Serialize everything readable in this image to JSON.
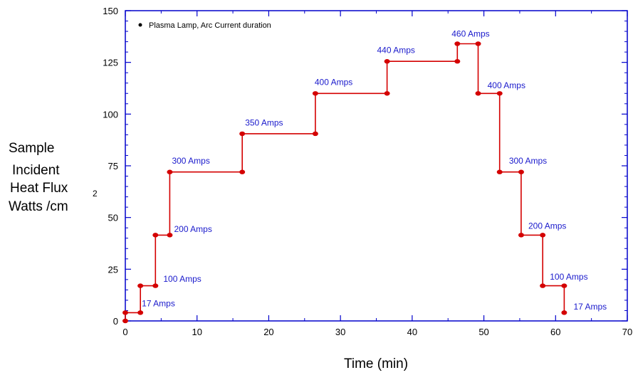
{
  "chart_data": {
    "type": "line",
    "step": true,
    "xlim": [
      0,
      70
    ],
    "ylim": [
      0,
      150
    ],
    "x_ticks": [
      0,
      10,
      20,
      30,
      40,
      50,
      60,
      70
    ],
    "y_ticks": [
      0,
      25,
      50,
      75,
      100,
      125,
      150
    ],
    "xlabel": "Time (min)",
    "ylabel_lines": [
      "Sample",
      "Incident",
      "Heat Flux",
      "Watts /cm"
    ],
    "ylabel_superscript": "2",
    "legend": {
      "label": "Plasma Lamp, Arc Current duration",
      "position": "top-left"
    },
    "colors": {
      "series": "#d40000",
      "labels": "#1a1acc",
      "axis": "#0000cc"
    },
    "series": [
      {
        "points": [
          [
            0,
            0
          ],
          [
            0,
            4
          ],
          [
            2.1,
            4
          ],
          [
            2.1,
            17
          ],
          [
            4.2,
            17
          ],
          [
            4.2,
            41.5
          ],
          [
            6.2,
            41.5
          ],
          [
            6.2,
            72
          ],
          [
            16.3,
            72
          ],
          [
            16.3,
            90.5
          ],
          [
            26.5,
            90.5
          ],
          [
            26.5,
            110
          ],
          [
            36.5,
            110
          ],
          [
            36.5,
            125.5
          ],
          [
            46.3,
            125.5
          ],
          [
            46.3,
            134
          ],
          [
            49.2,
            134
          ],
          [
            49.2,
            110
          ],
          [
            52.2,
            110
          ],
          [
            52.2,
            72
          ],
          [
            55.2,
            72
          ],
          [
            55.2,
            41.5
          ],
          [
            58.2,
            41.5
          ],
          [
            58.2,
            17
          ],
          [
            61.2,
            17
          ],
          [
            61.2,
            4
          ]
        ]
      }
    ],
    "annotations": [
      {
        "text": "17 Amps",
        "x": 2.3,
        "y": 7
      },
      {
        "text": "100 Amps",
        "x": 5.3,
        "y": 19
      },
      {
        "text": "200 Amps",
        "x": 6.8,
        "y": 43
      },
      {
        "text": "300 Amps",
        "x": 6.5,
        "y": 76
      },
      {
        "text": "350 Amps",
        "x": 16.7,
        "y": 94.5
      },
      {
        "text": "400 Amps",
        "x": 26.4,
        "y": 114
      },
      {
        "text": "440 Amps",
        "x": 35.1,
        "y": 129.5
      },
      {
        "text": "460 Amps",
        "x": 45.5,
        "y": 137.5
      },
      {
        "text": "400 Amps",
        "x": 50.5,
        "y": 112.5
      },
      {
        "text": "300 Amps",
        "x": 53.5,
        "y": 76
      },
      {
        "text": "200 Amps",
        "x": 56.2,
        "y": 44.5
      },
      {
        "text": "100 Amps",
        "x": 59.2,
        "y": 20
      },
      {
        "text": "17 Amps",
        "x": 62.5,
        "y": 5.5
      }
    ]
  }
}
